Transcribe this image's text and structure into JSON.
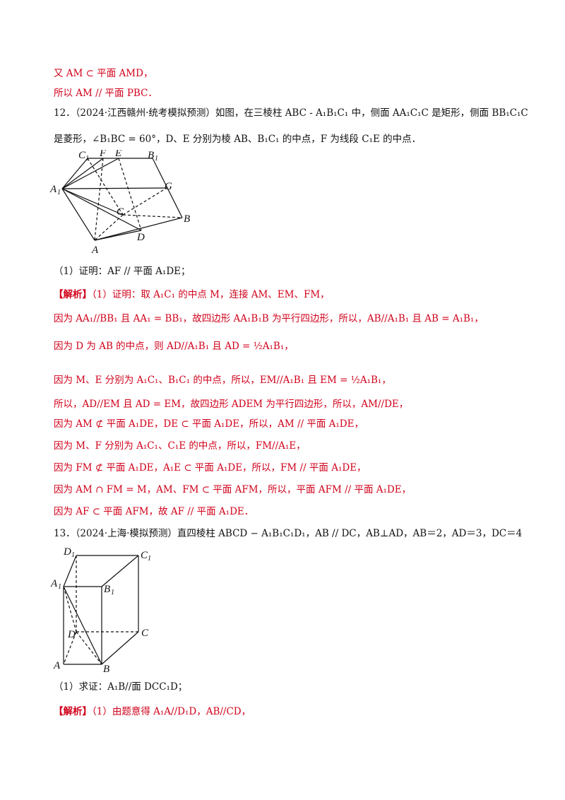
{
  "lines": {
    "l1": "又 AM ⊂ 平面 AMD，",
    "l2": "所以 AM // 平面 PBC．",
    "q12a": "12．（2024·江西赣州·统考模拟预测）如图，在三棱柱 ABC - A₁B₁C₁ 中，侧面 AA₁C₁C 是矩形，侧面 BB₁C₁C",
    "q12b": "是菱形，∠B₁BC = 60°，D、E 分别为棱 AB、B₁C₁ 的中点，F 为线段 C₁E 的中点．",
    "q12p1": "（1）证明：AF // 平面 A₁DE；",
    "s1_tag": "【解析】",
    "s1": "（1）证明：取 A₁C₁ 的中点 M，连接 AM、EM、FM，",
    "s2": "因为 AA₁//BB₁ 且 AA₁ = BB₁，故四边形 AA₁B₁B 为平行四边形，所以，AB//A₁B₁ 且 AB = A₁B₁，",
    "s3": "因为 D 为 AB 的中点，则 AD//A₁B₁ 且 AD = ½A₁B₁，",
    "s4": "因为 M、E 分别为 A₁C₁、B₁C₁ 的中点，所以，EM//A₁B₁ 且 EM = ½A₁B₁，",
    "s5": "所以，AD//EM 且 AD = EM，故四边形 ADEM 为平行四边形，所以，AM//DE，",
    "s6": "因为 AM ⊄ 平面 A₁DE，DE ⊂ 平面 A₁DE，所以，AM // 平面 A₁DE，",
    "s7": "因为 M、F 分别为 A₁C₁、C₁E 的中点，所以，FM//A₁E，",
    "s8": "因为 FM ⊄ 平面 A₁DE，A₁E ⊂ 平面 A₁DE，所以，FM // 平面 A₁DE，",
    "s9": "因为 AM ∩ FM = M，AM、FM ⊂ 平面 AFM，所以，平面 AFM // 平面 A₁DE，",
    "s10": "因为 AF ⊂ 平面 AFM，故 AF // 平面 A₁DE．",
    "q13": "13．（2024·上海·模拟预测）直四棱柱 ABCD − A₁B₁C₁D₁，AB // DC，AB⊥AD，AB＝2，AD＝3，DC＝4",
    "q13p1": "（1）求证：A₁B//面 DCC₁D；",
    "s11_tag": "【解析】",
    "s11": "（1）由题意得 A₁A//D₁D，AB//CD，"
  },
  "fig12": {
    "labels": {
      "C1": "C",
      "C1s": "1",
      "F": "F",
      "E": "E",
      "B1": "B",
      "B1s": "1",
      "A1": "A",
      "A1s": "1",
      "G": "G",
      "C": "C",
      "B": "B",
      "D": "D",
      "A": "A"
    }
  },
  "fig13": {
    "labels": {
      "D1": "D",
      "D1s": "1",
      "C1": "C",
      "C1s": "1",
      "A1": "A",
      "A1s": "1",
      "B1": "B",
      "B1s": "1",
      "D": "D",
      "C": "C",
      "A": "A",
      "B": "B"
    }
  },
  "colors": {
    "solution": "#d0021b",
    "text": "#111111"
  }
}
